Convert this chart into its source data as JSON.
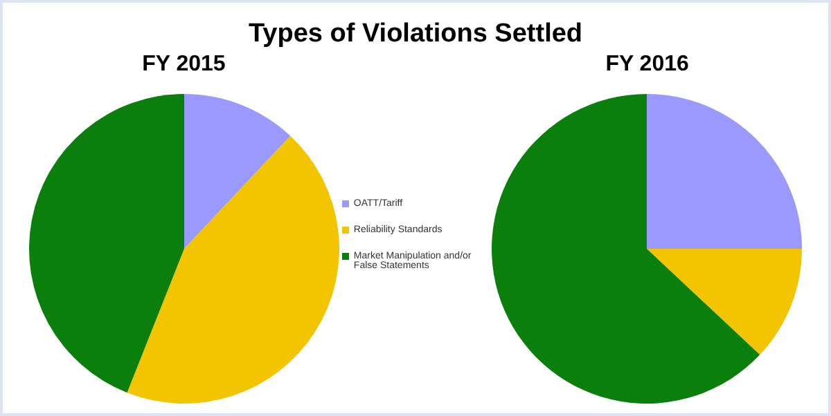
{
  "chart_data": [
    {
      "type": "pie",
      "title": "Types of Violations Settled",
      "subtitle": "FY 2015",
      "categories": [
        "OATT/Tariff",
        "Reliability Standards",
        "Market Manipulation and/or False Statements"
      ],
      "values": [
        12,
        44,
        44
      ],
      "colors": [
        "#9999ff",
        "#f2c500",
        "#0b7f0b"
      ],
      "legend": "right"
    },
    {
      "type": "pie",
      "subtitle": "FY 2016",
      "categories": [
        null,
        null,
        null
      ],
      "values": [
        25,
        12,
        63
      ],
      "colors": [
        "#9999ff",
        "#f2c500",
        "#0b7f0b"
      ]
    }
  ]
}
